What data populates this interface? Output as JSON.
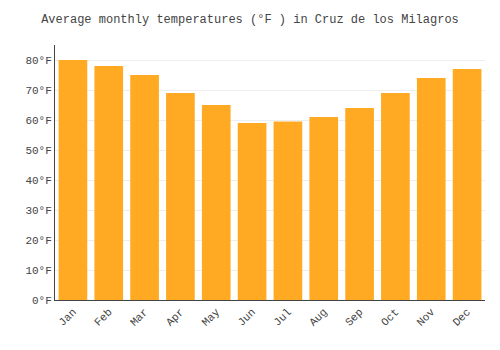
{
  "chart_data": {
    "type": "bar",
    "title": "Average monthly temperatures (°F ) in Cruz de los Milagros",
    "categories": [
      "Jan",
      "Feb",
      "Mar",
      "Apr",
      "May",
      "Jun",
      "Jul",
      "Aug",
      "Sep",
      "Oct",
      "Nov",
      "Dec"
    ],
    "values": [
      80,
      78,
      75,
      69,
      65,
      59,
      59.5,
      61,
      64,
      69,
      74,
      77
    ],
    "color": "#FFAA22",
    "ylim": [
      0,
      85
    ],
    "yticks": [
      {
        "value": 0,
        "label": "0°F"
      },
      {
        "value": 10,
        "label": "10°F"
      },
      {
        "value": 20,
        "label": "20°F"
      },
      {
        "value": 30,
        "label": "30°F"
      },
      {
        "value": 40,
        "label": "40°F"
      },
      {
        "value": 50,
        "label": "50°F"
      },
      {
        "value": 60,
        "label": "60°F"
      },
      {
        "value": 70,
        "label": "70°F"
      },
      {
        "value": 80,
        "label": "80°F"
      }
    ],
    "grid": true
  }
}
